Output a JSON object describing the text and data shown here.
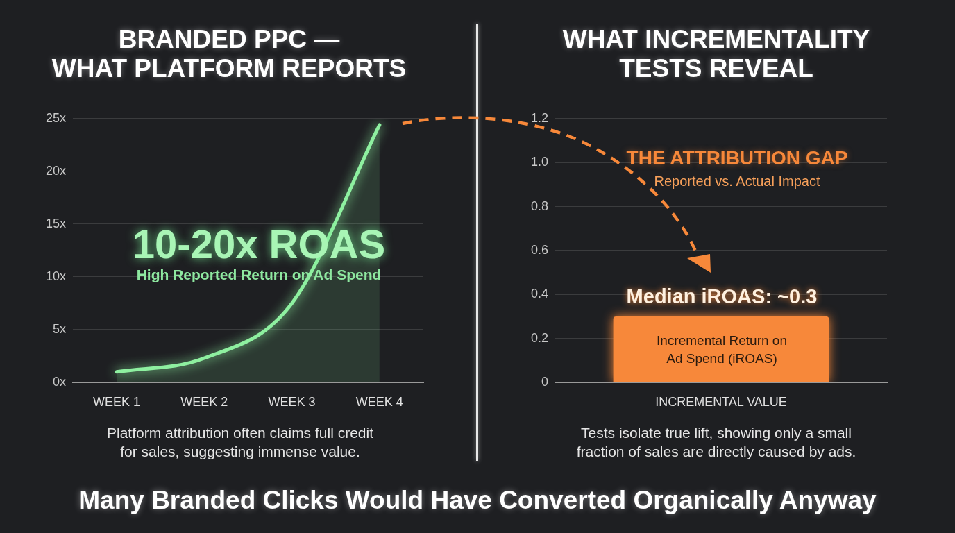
{
  "chart_data": [
    {
      "type": "area",
      "title": "BRANDED PPC —\nWHAT PLATFORM REPORTS",
      "categories": [
        "WEEK 1",
        "WEEK 2",
        "WEEK 3",
        "WEEK 4"
      ],
      "values": [
        1.0,
        2.3,
        7.5,
        24.4
      ],
      "color": "#8ef0a0",
      "ylim": [
        0,
        25
      ],
      "yticks": [
        {
          "value": 0,
          "label": "0x"
        },
        {
          "value": 5,
          "label": "5x"
        },
        {
          "value": 10,
          "label": "10x"
        },
        {
          "value": 15,
          "label": "15x"
        },
        {
          "value": 20,
          "label": "20x"
        },
        {
          "value": 25,
          "label": "25x"
        }
      ],
      "grid": "y",
      "legend": false,
      "annotations": [
        "10-20x ROAS",
        "High Reported Return on Ad Spend",
        "Platform attribution often claims full credit\nfor sales, suggesting immense value."
      ]
    },
    {
      "type": "bar",
      "title": "WHAT INCREMENTALITY\nTESTS REVEAL",
      "categories": [
        "INCREMENTAL VALUE"
      ],
      "values": [
        0.3
      ],
      "color": "#f7883a",
      "ylim": [
        0,
        1.2
      ],
      "yticks": [
        0,
        0.2,
        0.4,
        0.6,
        0.8,
        {
          "value": 1,
          "label": "1.0"
        },
        1.2
      ],
      "grid": "y",
      "legend": false,
      "annotations": [
        "THE ATTRIBUTION GAP",
        "Reported vs. Actual Impact",
        "Median iROAS: ~0.3",
        "Incremental Return on\nAd Spend (iROAS)",
        "Tests isolate true lift, showing only a small\nfraction of sales are directly caused by ads."
      ]
    },
    {
      "type": "other",
      "title": "Many Branded Clicks Would Have Converted Organically Anyway"
    }
  ]
}
